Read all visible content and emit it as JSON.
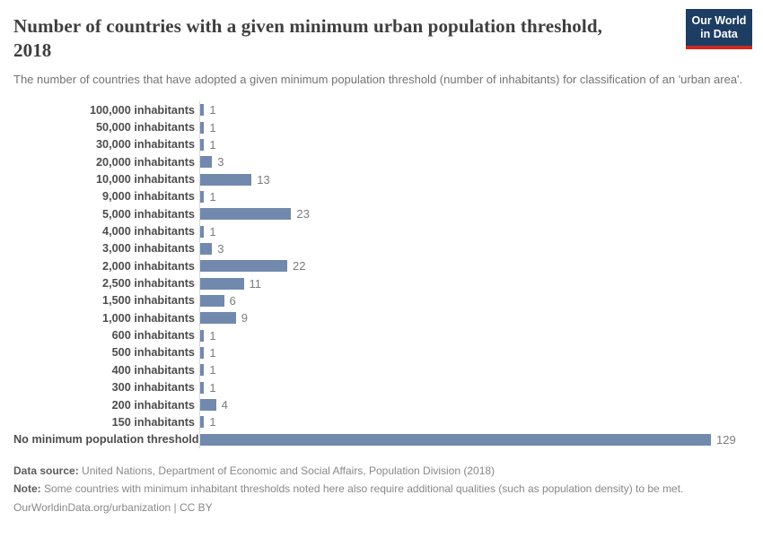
{
  "header": {
    "title": "Number of countries with a given minimum urban population threshold, 2018",
    "subtitle": "The number of countries that have adopted a given minimum population threshold (number of inhabitants) for classification of an 'urban area'.",
    "logo": {
      "line1": "Our World",
      "line2": "in Data"
    }
  },
  "chart_data": {
    "type": "bar",
    "orientation": "horizontal",
    "title": "Number of countries with a given minimum urban population threshold, 2018",
    "categories": [
      "100,000 inhabitants",
      "50,000 inhabitants",
      "30,000 inhabitants",
      "20,000 inhabitants",
      "10,000 inhabitants",
      "9,000 inhabitants",
      "5,000 inhabitants",
      "4,000 inhabitants",
      "3,000 inhabitants",
      "2,000 inhabitants",
      "2,500 inhabitants",
      "1,500 inhabitants",
      "1,000 inhabitants",
      "600 inhabitants",
      "500 inhabitants",
      "400 inhabitants",
      "300 inhabitants",
      "200 inhabitants",
      "150 inhabitants",
      "No minimum population threshold"
    ],
    "values": [
      1,
      1,
      1,
      3,
      13,
      1,
      23,
      1,
      3,
      22,
      11,
      6,
      9,
      1,
      1,
      1,
      1,
      4,
      1,
      129
    ],
    "xlim": [
      0,
      129
    ],
    "value_labels_shown": true,
    "grid": false,
    "legend": "none",
    "bar_color": "#7289ae",
    "axis_line_color": "#d9d9d9"
  },
  "footer": {
    "data_source_label": "Data source:",
    "data_source_text": " United Nations, Department of Economic and Social Affairs, Population Division (2018)",
    "note_label": "Note:",
    "note_text": " Some countries with minimum inhabitant thresholds noted here also require additional qualities (such as population density) to be met.",
    "citation": "OurWorldinData.org/urbanization | CC BY"
  },
  "colors": {
    "bar": "#7289ae",
    "logo_background": "#1d3d63",
    "logo_stripe": "#cc2a25"
  }
}
